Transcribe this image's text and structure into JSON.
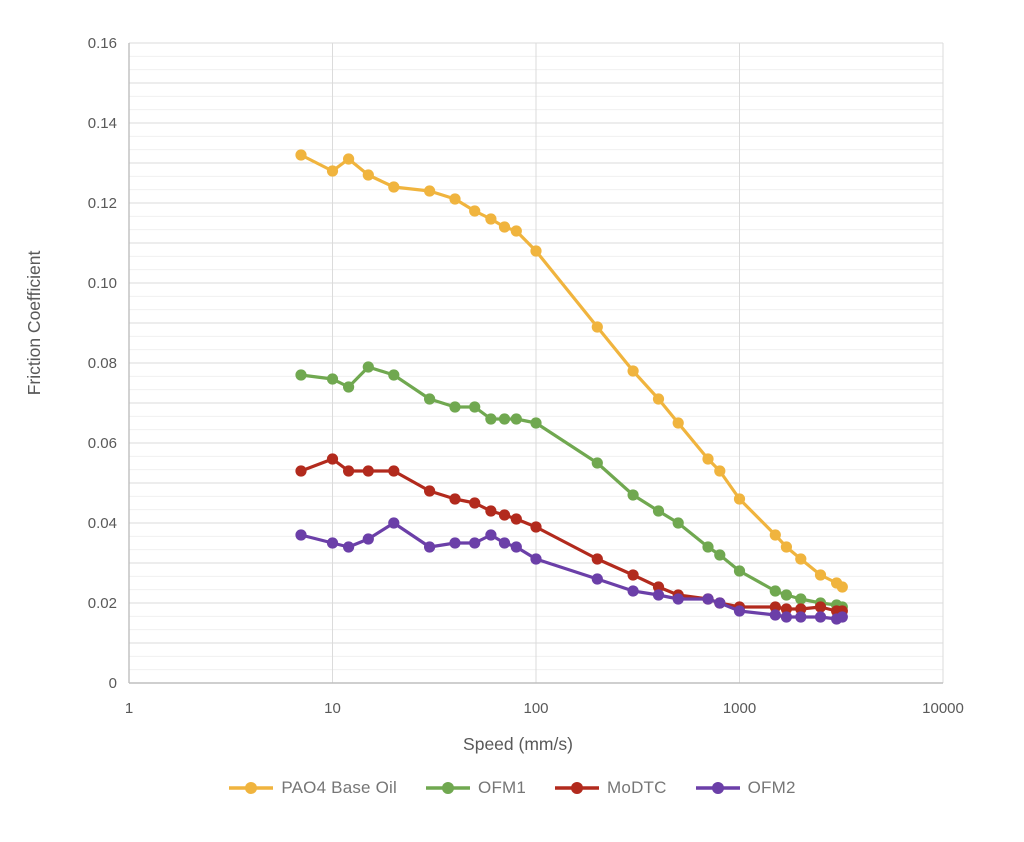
{
  "chart_data": {
    "type": "line",
    "title": "",
    "xlabel": "Speed (mm/s)",
    "ylabel": "Friction Coefficient",
    "x_scale": "log",
    "xlim": [
      1,
      10000
    ],
    "ylim": [
      0,
      0.16
    ],
    "x_ticks": [
      1,
      10,
      100,
      1000,
      10000
    ],
    "x_tick_labels": [
      "1",
      "10",
      "100",
      "1000",
      "10000"
    ],
    "y_tick_labels": [
      "0",
      "0.02",
      "0.04",
      "0.06",
      "0.08",
      "0.10",
      "0.12",
      "0.14",
      "0.16"
    ],
    "y_label_step": 0.02,
    "y_minor_step": 0.00333333,
    "grid": {
      "horizontal_minor": true,
      "horizontal_darker_every": 0.01,
      "vertical_at_decades": true
    },
    "legend_position": "bottom",
    "x": [
      7,
      10,
      12,
      15,
      20,
      30,
      40,
      50,
      60,
      70,
      80,
      100,
      200,
      300,
      400,
      500,
      700,
      800,
      1000,
      1500,
      1700,
      2000,
      2500,
      3000,
      3200
    ],
    "series": [
      {
        "name": "PAO4 Base Oil",
        "color": "#F0B43E",
        "values": [
          0.132,
          0.128,
          0.131,
          0.127,
          0.124,
          0.123,
          0.121,
          0.118,
          0.116,
          0.114,
          0.113,
          0.108,
          0.089,
          0.078,
          0.071,
          0.065,
          0.056,
          0.053,
          0.046,
          0.037,
          0.034,
          0.031,
          0.027,
          0.025,
          0.024
        ]
      },
      {
        "name": "OFM1",
        "color": "#70A850",
        "values": [
          0.077,
          0.076,
          0.074,
          0.079,
          0.077,
          0.071,
          0.069,
          0.069,
          0.066,
          0.066,
          0.066,
          0.065,
          0.055,
          0.047,
          0.043,
          0.04,
          0.034,
          0.032,
          0.028,
          0.023,
          0.022,
          0.021,
          0.02,
          0.0195,
          0.019
        ]
      },
      {
        "name": "MoDTC",
        "color": "#B22A1D",
        "values": [
          0.053,
          0.056,
          0.053,
          0.053,
          0.053,
          0.048,
          0.046,
          0.045,
          0.043,
          0.042,
          0.041,
          0.039,
          0.031,
          0.027,
          0.024,
          0.022,
          0.021,
          0.02,
          0.019,
          0.019,
          0.0185,
          0.0185,
          0.019,
          0.018,
          0.018
        ]
      },
      {
        "name": "OFM2",
        "color": "#6B3FA8",
        "values": [
          0.037,
          0.035,
          0.034,
          0.036,
          0.04,
          0.034,
          0.035,
          0.035,
          0.037,
          0.035,
          0.034,
          0.031,
          0.026,
          0.023,
          0.022,
          0.021,
          0.021,
          0.02,
          0.018,
          0.017,
          0.0165,
          0.0165,
          0.0165,
          0.016,
          0.0165
        ]
      }
    ],
    "colors": {
      "axis_text": "#595959",
      "legend_text": "#767676",
      "axis_line": "#BFBFBF",
      "grid_major": "#DBDBDB",
      "grid_minor": "#F0F0F0"
    }
  }
}
